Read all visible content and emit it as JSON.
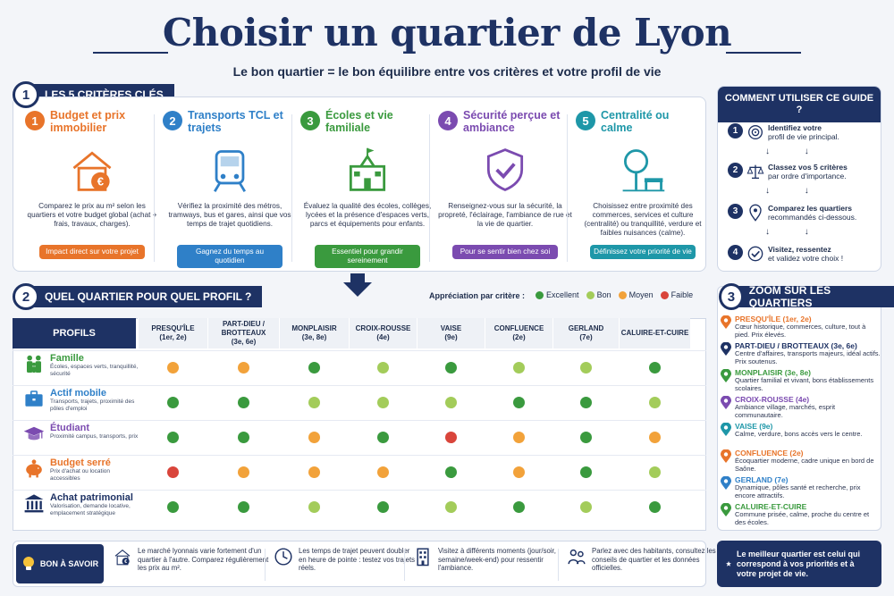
{
  "header": {
    "title": "Choisir un quartier de Lyon",
    "subtitle": "Le bon quartier = le bon équilibre entre vos critères et votre profil de vie"
  },
  "section1": {
    "num": "1",
    "label": "LES 5 CRITÈRES CLÉS",
    "criteria": [
      {
        "num": "1",
        "title": "Budget et prix immobilier",
        "icon": "house-euro-icon",
        "color": "#e8742a",
        "text": "Comparez le prix au m² selon les quartiers et votre budget global (achat + frais, travaux, charges).",
        "pill": "Impact direct sur votre projet"
      },
      {
        "num": "2",
        "title": "Transports TCL et trajets",
        "icon": "tram-icon",
        "color": "#2f80c8",
        "text": "Vérifiez la proximité des métros, tramways, bus et gares, ainsi que vos temps de trajet quotidiens.",
        "pill": "Gagnez du temps au quotidien"
      },
      {
        "num": "3",
        "title": "Écoles et vie familiale",
        "icon": "school-icon",
        "color": "#3a9a3e",
        "text": "Évaluez la qualité des écoles, collèges, lycées et la présence d'espaces verts, parcs et équipements pour enfants.",
        "pill": "Essentiel pour grandir sereinement"
      },
      {
        "num": "4",
        "title": "Sécurité perçue et ambiance",
        "icon": "shield-check-icon",
        "color": "#7b4bb0",
        "text": "Renseignez-vous sur la sécurité, la propreté, l'éclairage, l'ambiance de rue et la vie de quartier.",
        "pill": "Pour se sentir bien chez soi"
      },
      {
        "num": "5",
        "title": "Centralité ou calme",
        "icon": "tree-bench-icon",
        "color": "#1e97a8",
        "text": "Choisissez entre proximité des commerces, services et culture (centralité) ou tranquillité, verdure et faibles nuisances (calme).",
        "pill": "Définissez votre priorité de vie"
      }
    ]
  },
  "guide": {
    "title": "COMMENT UTILISER CE GUIDE ?",
    "steps": [
      {
        "num": "1",
        "icon": "target-icon",
        "bold": "Identifiez votre",
        "rest": "profil de vie principal."
      },
      {
        "num": "2",
        "icon": "scale-icon",
        "bold": "Classez vos 5 critères",
        "rest": "par ordre d'importance."
      },
      {
        "num": "3",
        "icon": "map-pin-icon",
        "bold": "Comparez les quartiers",
        "rest": "recommandés ci-dessous."
      },
      {
        "num": "4",
        "icon": "check-circle-icon",
        "bold": "Visitez, ressentez",
        "rest": "et validez votre choix !"
      }
    ],
    "arrows": "↓ ↓"
  },
  "section2": {
    "num": "2",
    "label": "QUEL QUARTIER POUR QUEL PROFIL ?",
    "legend_title": "Appréciation par critère :",
    "legend": [
      {
        "label": "Excellent",
        "color": "#3a9a3e"
      },
      {
        "label": "Bon",
        "color": "#a3cc5a"
      },
      {
        "label": "Moyen",
        "color": "#f2a23a"
      },
      {
        "label": "Faible",
        "color": "#d9453b"
      }
    ],
    "profils_label": "PROFILS",
    "columns": [
      {
        "name": "PRESQU'ÎLE",
        "sub": "(1er, 2e)"
      },
      {
        "name": "PART-DIEU / BROTTEAUX",
        "sub": "(3e, 6e)"
      },
      {
        "name": "MONPLAISIR",
        "sub": "(3e, 8e)"
      },
      {
        "name": "CROIX-ROUSSE",
        "sub": "(4e)"
      },
      {
        "name": "VAISE",
        "sub": "(9e)"
      },
      {
        "name": "CONFLUENCE",
        "sub": "(2e)"
      },
      {
        "name": "GERLAND",
        "sub": "(7e)"
      },
      {
        "name": "CALUIRE-ET-CUIRE",
        "sub": ""
      }
    ],
    "rows": [
      {
        "name": "Famille",
        "icon": "family-icon",
        "color": "#3a9a3e",
        "desc": "Écoles, espaces verts, tranquillité, sécurité",
        "ratings": [
          "moyen",
          "moyen",
          "excellent",
          "bon",
          "excellent",
          "bon",
          "bon",
          "excellent"
        ]
      },
      {
        "name": "Actif mobile",
        "icon": "briefcase-icon",
        "color": "#2f80c8",
        "desc": "Transports, trajets, proximité des pôles d'emploi",
        "ratings": [
          "excellent",
          "excellent",
          "bon",
          "bon",
          "bon",
          "excellent",
          "excellent",
          "bon"
        ]
      },
      {
        "name": "Étudiant",
        "icon": "graduation-cap-icon",
        "color": "#7b4bb0",
        "desc": "Proximité campus, transports, prix",
        "ratings": [
          "excellent",
          "excellent",
          "moyen",
          "excellent",
          "faible",
          "moyen",
          "excellent",
          "moyen"
        ]
      },
      {
        "name": "Budget serré",
        "icon": "piggy-bank-icon",
        "color": "#e8742a",
        "desc": "Prix d'achat ou location accessibles",
        "ratings": [
          "faible",
          "moyen",
          "moyen",
          "moyen",
          "excellent",
          "moyen",
          "excellent",
          "bon"
        ]
      },
      {
        "name": "Achat patrimonial",
        "icon": "bank-building-icon",
        "color": "#1e3264",
        "desc": "Valorisation, demande locative, emplacement stratégique",
        "ratings": [
          "excellent",
          "excellent",
          "bon",
          "excellent",
          "bon",
          "excellent",
          "bon",
          "excellent"
        ]
      }
    ]
  },
  "section3": {
    "num": "3",
    "label": "ZOOM SUR LES QUARTIERS",
    "items": [
      {
        "name": "PRESQU'ÎLE (1er, 2e)",
        "color": "#e8742a",
        "desc": "Cœur historique, commerces, culture, tout à pied. Prix élevés."
      },
      {
        "name": "PART-DIEU / BROTTEAUX (3e, 6e)",
        "color": "#1e3264",
        "desc": "Centre d'affaires, transports majeurs, idéal actifs. Prix soutenus."
      },
      {
        "name": "MONPLAISIR (3e, 8e)",
        "color": "#3a9a3e",
        "desc": "Quartier familial et vivant, bons établissements scolaires."
      },
      {
        "name": "CROIX-ROUSSE (4e)",
        "color": "#7b4bb0",
        "desc": "Ambiance village, marchés, esprit communautaire."
      },
      {
        "name": "VAISE (9e)",
        "color": "#1e97a8",
        "desc": "Calme, verdure, bons accès vers le centre."
      },
      {
        "name": "CONFLUENCE (2e)",
        "color": "#e8742a",
        "desc": "Écoquartier moderne, cadre unique en bord de Saône."
      },
      {
        "name": "GERLAND (7e)",
        "color": "#2f80c8",
        "desc": "Dynamique, pôles santé et recherche, prix encore attractifs."
      },
      {
        "name": "CALUIRE-ET-CUIRE",
        "color": "#3a9a3e",
        "desc": "Commune prisée, calme, proche du centre et des écoles."
      }
    ]
  },
  "footer": {
    "bas_label": "BON À SAVOIR",
    "tips": [
      {
        "icon": "house-euro-icon",
        "text": "Le marché lyonnais varie fortement d'un quartier à l'autre. Comparez régulièrement les prix au m²."
      },
      {
        "icon": "clock-icon",
        "text": "Les temps de trajet peuvent doubler en heure de pointe : testez vos trajets réels."
      },
      {
        "icon": "building-icon",
        "text": "Visitez à différents moments (jour/soir, semaine/week-end) pour ressentir l'ambiance."
      },
      {
        "icon": "people-icon",
        "text": "Parlez avec des habitants, consultez les conseils de quartier et les données officielles."
      }
    ],
    "final": "Le meilleur quartier est celui qui correspond à vos priorités et à votre projet de vie."
  }
}
